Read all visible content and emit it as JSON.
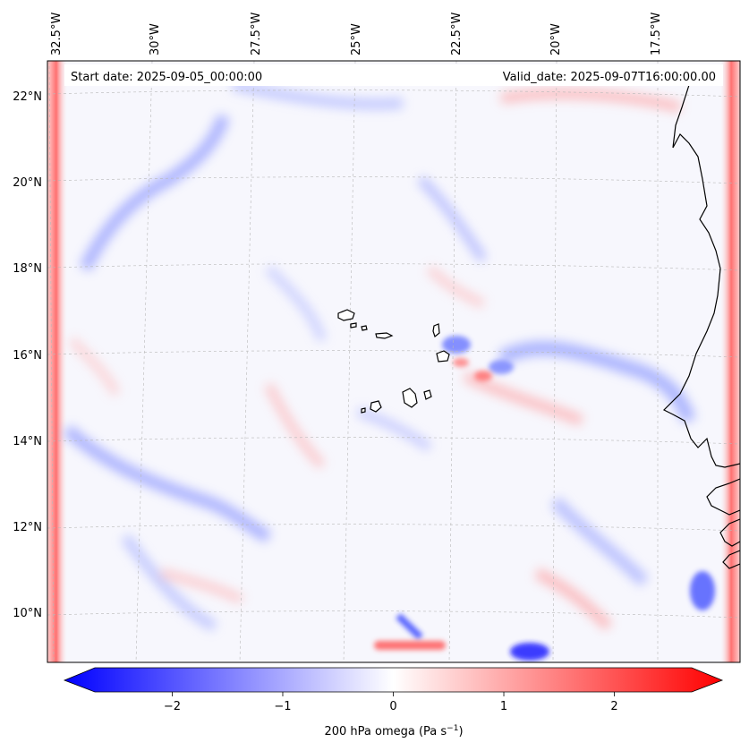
{
  "header": {
    "start_date": "Start date: 2025-09-05_00:00:00",
    "valid_date": "Valid_date: 2025-09-07T16:00:00.00"
  },
  "axes": {
    "longitude_labels": [
      "32.5°W",
      "30°W",
      "27.5°W",
      "25°W",
      "22.5°W",
      "20°W",
      "17.5°W"
    ],
    "latitude_labels": [
      "22°N",
      "20°N",
      "18°N",
      "16°N",
      "14°N",
      "12°N",
      "10°N"
    ]
  },
  "colorbar": {
    "label": "200 hPa omega (Pa s",
    "label_superscript": "−1",
    "label_close": ")",
    "ticks": [
      "−2",
      "−1",
      "0",
      "1",
      "2"
    ],
    "tick_values": [
      -2,
      -1,
      0,
      1,
      2
    ],
    "range": [
      -2.7,
      2.7
    ],
    "negative_color": "#0000ff",
    "neutral_color": "#ffffff",
    "positive_color": "#ff0000"
  },
  "colors": {
    "coastline": "#000000",
    "gridline": "#b8b8b8",
    "background_field": "#f7f7fd"
  }
}
